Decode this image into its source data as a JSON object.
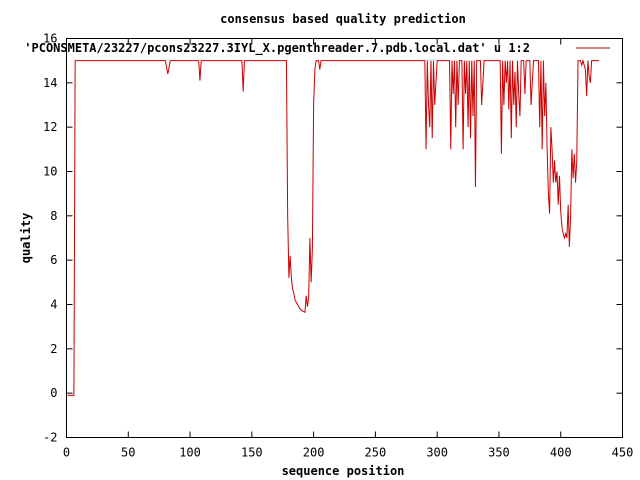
{
  "chart_data": {
    "type": "line",
    "title": "consensus based quality prediction",
    "xlabel": "sequence position",
    "ylabel": "quality",
    "xlim": [
      0,
      450
    ],
    "ylim": [
      -2,
      16
    ],
    "xticks": [
      0,
      50,
      100,
      150,
      200,
      250,
      300,
      350,
      400,
      450
    ],
    "yticks": [
      -2,
      0,
      2,
      4,
      6,
      8,
      10,
      12,
      14,
      16
    ],
    "grid": false,
    "legend_position": "top-right",
    "series": [
      {
        "name": "'PCONSMETA/23227/pcons23227.3IYL_X.pgenthreader.7.pdb.local.dat' u 1:2",
        "color": "#cc0000",
        "points": [
          [
            1,
            -0.1
          ],
          [
            6,
            -0.1
          ],
          [
            6.5,
            7.5
          ],
          [
            7,
            15
          ],
          [
            8,
            15
          ],
          [
            80,
            15
          ],
          [
            82,
            14.4
          ],
          [
            84,
            15
          ],
          [
            107,
            15
          ],
          [
            108,
            14.1
          ],
          [
            109,
            15
          ],
          [
            142,
            15
          ],
          [
            143,
            13.6
          ],
          [
            144,
            15
          ],
          [
            178,
            15
          ],
          [
            179,
            8
          ],
          [
            180,
            5.2
          ],
          [
            181,
            6.2
          ],
          [
            182,
            5.2
          ],
          [
            183,
            4.7
          ],
          [
            184,
            4.5
          ],
          [
            185,
            4.2
          ],
          [
            187,
            4.0
          ],
          [
            189,
            3.8
          ],
          [
            191,
            3.7
          ],
          [
            193,
            3.65
          ],
          [
            194,
            4.4
          ],
          [
            195,
            3.9
          ],
          [
            196,
            4.3
          ],
          [
            197,
            7.0
          ],
          [
            198,
            5.0
          ],
          [
            199,
            6.5
          ],
          [
            200,
            13
          ],
          [
            201,
            14.6
          ],
          [
            202,
            15
          ],
          [
            204,
            15
          ],
          [
            205,
            14.6
          ],
          [
            206,
            15
          ],
          [
            290,
            15
          ],
          [
            291,
            11
          ],
          [
            292,
            15
          ],
          [
            293,
            13
          ],
          [
            294,
            12
          ],
          [
            295,
            15
          ],
          [
            296,
            11.5
          ],
          [
            297,
            15
          ],
          [
            298,
            13
          ],
          [
            299,
            14
          ],
          [
            300,
            15
          ],
          [
            310,
            15
          ],
          [
            311,
            11
          ],
          [
            312,
            15
          ],
          [
            313,
            13.5
          ],
          [
            314,
            15
          ],
          [
            315,
            12
          ],
          [
            316,
            15
          ],
          [
            317,
            13
          ],
          [
            318,
            15
          ],
          [
            320,
            15
          ],
          [
            321,
            11
          ],
          [
            322,
            15
          ],
          [
            323,
            13.5
          ],
          [
            324,
            15
          ],
          [
            325,
            12
          ],
          [
            326,
            15
          ],
          [
            327,
            11.5
          ],
          [
            328,
            15
          ],
          [
            329,
            12.5
          ],
          [
            330,
            15
          ],
          [
            331,
            9.3
          ],
          [
            332,
            15
          ],
          [
            335,
            15
          ],
          [
            336,
            13
          ],
          [
            337,
            14
          ],
          [
            338,
            15
          ],
          [
            351,
            15
          ],
          [
            352,
            10.8
          ],
          [
            353,
            15
          ],
          [
            354,
            13
          ],
          [
            355,
            15
          ],
          [
            356,
            14
          ],
          [
            357,
            15
          ],
          [
            358,
            12.8
          ],
          [
            359,
            15
          ],
          [
            360,
            11.5
          ],
          [
            361,
            15
          ],
          [
            362,
            13
          ],
          [
            363,
            14.5
          ],
          [
            364,
            12
          ],
          [
            365,
            15
          ],
          [
            366,
            13.5
          ],
          [
            367,
            12.5
          ],
          [
            368,
            15
          ],
          [
            370,
            15
          ],
          [
            371,
            13.5
          ],
          [
            372,
            15
          ],
          [
            375,
            15
          ],
          [
            376,
            13
          ],
          [
            377,
            14
          ],
          [
            378,
            15
          ],
          [
            382,
            15
          ],
          [
            383,
            12
          ],
          [
            384,
            15
          ],
          [
            385,
            11
          ],
          [
            386,
            15
          ],
          [
            387,
            12.5
          ],
          [
            388,
            14
          ],
          [
            389,
            11
          ],
          [
            390,
            9
          ],
          [
            391,
            8.1
          ],
          [
            392,
            12
          ],
          [
            393,
            11
          ],
          [
            394,
            9.5
          ],
          [
            395,
            10.5
          ],
          [
            396,
            9.5
          ],
          [
            397,
            10
          ],
          [
            398,
            8.5
          ],
          [
            399,
            9.8
          ],
          [
            400,
            8.2
          ],
          [
            401,
            7.5
          ],
          [
            402,
            7.2
          ],
          [
            403,
            7.0
          ],
          [
            404,
            7.2
          ],
          [
            405,
            7.0
          ],
          [
            406,
            8.5
          ],
          [
            407,
            6.6
          ],
          [
            408,
            8.0
          ],
          [
            409,
            11
          ],
          [
            410,
            9.7
          ],
          [
            411,
            10.8
          ],
          [
            412,
            9.5
          ],
          [
            413,
            10.5
          ],
          [
            414,
            15
          ],
          [
            416,
            15
          ],
          [
            417,
            14.8
          ],
          [
            418,
            15
          ],
          [
            420,
            14.6
          ],
          [
            421,
            13.4
          ],
          [
            422,
            15
          ],
          [
            423,
            14.3
          ],
          [
            424,
            14.0
          ],
          [
            425,
            15
          ],
          [
            430,
            15
          ],
          [
            431,
            15
          ]
        ]
      }
    ]
  }
}
